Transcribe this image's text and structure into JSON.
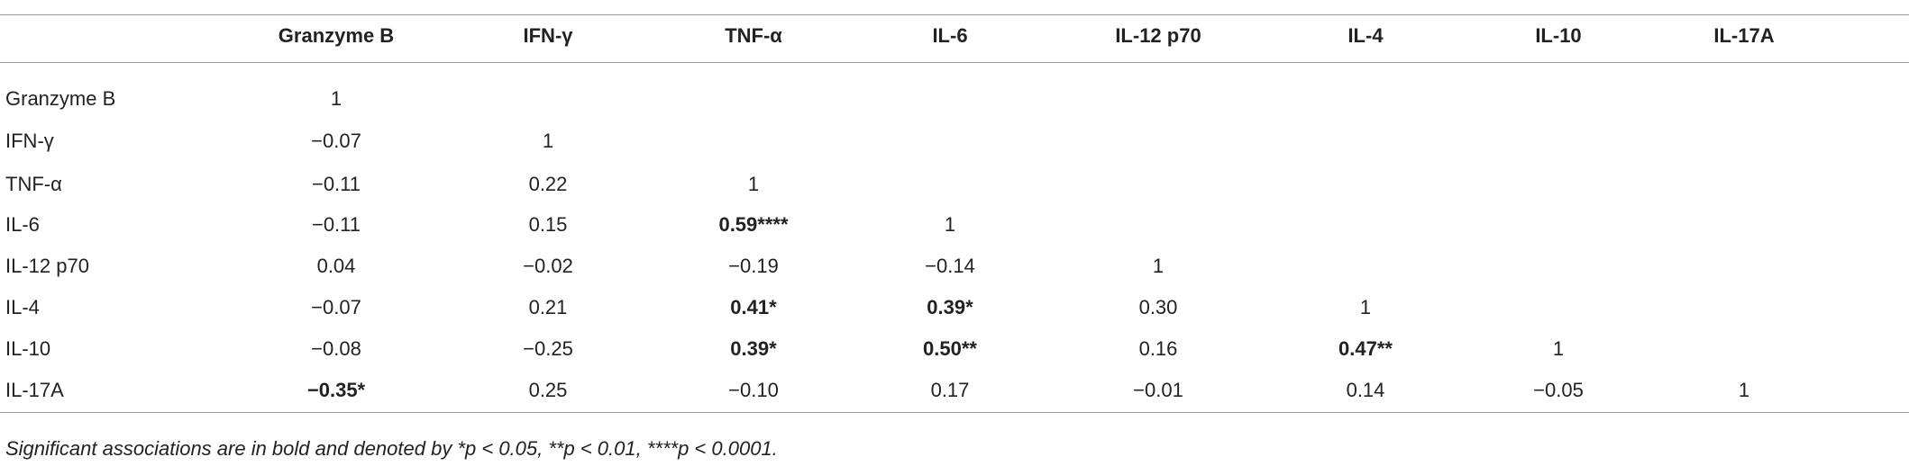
{
  "table": {
    "header": [
      "Granzyme B",
      "IFN-γ",
      "TNF-α",
      "IL-6",
      "IL-12 p70",
      "IL-4",
      "IL-10",
      "IL-17A"
    ],
    "rows": [
      {
        "label": "Granzyme B",
        "cells": [
          "1"
        ]
      },
      {
        "label": "IFN-γ",
        "cells": [
          "−0.07",
          "1"
        ]
      },
      {
        "label": "TNF-α",
        "cells": [
          "−0.11",
          "0.22",
          "1"
        ]
      },
      {
        "label": "IL-6",
        "cells": [
          "−0.11",
          "0.15",
          {
            "text": "0.59****",
            "bold": true
          },
          "1"
        ]
      },
      {
        "label": "IL-12 p70",
        "cells": [
          "0.04",
          "−0.02",
          "−0.19",
          "−0.14",
          "1"
        ]
      },
      {
        "label": "IL-4",
        "cells": [
          "−0.07",
          "0.21",
          {
            "text": "0.41*",
            "bold": true
          },
          {
            "text": "0.39*",
            "bold": true
          },
          "0.30",
          "1"
        ]
      },
      {
        "label": "IL-10",
        "cells": [
          "−0.08",
          "−0.25",
          {
            "text": "0.39*",
            "bold": true
          },
          {
            "text": "0.50**",
            "bold": true
          },
          "0.16",
          {
            "text": "0.47**",
            "bold": true
          },
          "1"
        ]
      },
      {
        "label": "IL-17A",
        "cells": [
          {
            "text": "−0.35*",
            "bold": true
          },
          "0.25",
          "−0.10",
          "0.17",
          "−0.01",
          "0.14",
          "−0.05",
          "1"
        ]
      }
    ],
    "footnote": "Significant associations are in bold and denoted by *p < 0.05, **p < 0.01, ****p < 0.0001."
  }
}
